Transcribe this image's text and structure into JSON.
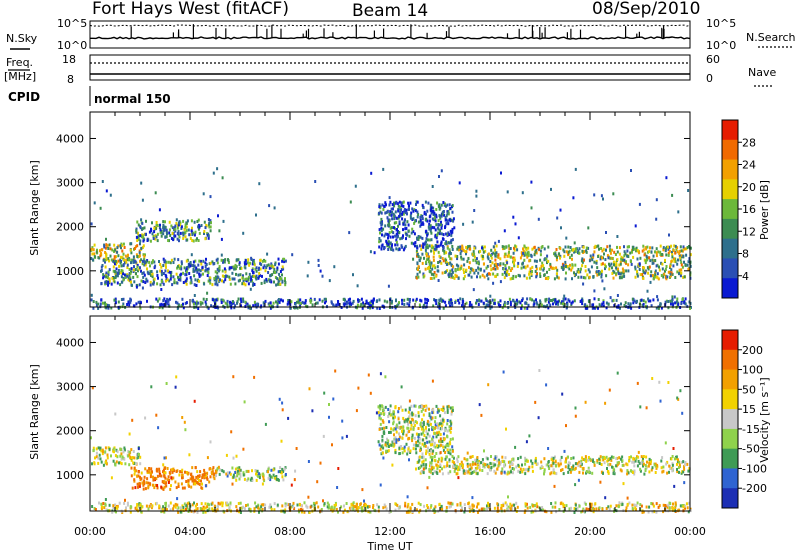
{
  "header": {
    "station": "Fort Hays West (fitACF)",
    "beam": "Beam 14",
    "date": "08/Sep/2010"
  },
  "strip": {
    "nsky_label": "N.Sky",
    "nsky_ticks": [
      "10^5",
      "10^0"
    ],
    "nsearch_label": "N.Search",
    "nsearch_ticks": [
      "10^5",
      "10^0"
    ],
    "freq_label": "Freq.",
    "freq_unit": "[MHz]",
    "freq_ticks": [
      "18",
      "8"
    ],
    "nave_label": "Nave",
    "nave_ticks": [
      "60",
      "0"
    ],
    "cpid_label": "CPID",
    "cpid_value": "normal 150"
  },
  "chart_data": [
    {
      "type": "heatmap",
      "name": "power",
      "xlabel": "Time UT",
      "ylabel": "Slant Range [km]",
      "xlim": [
        0,
        24
      ],
      "ylim": [
        180,
        4600
      ],
      "x_ticks": [
        "00:00",
        "04:00",
        "08:00",
        "12:00",
        "16:00",
        "20:00",
        "00:00"
      ],
      "y_ticks": [
        1000,
        2000,
        3000,
        4000
      ],
      "colorbar": {
        "label": "Power [dB]",
        "ticks": [
          4,
          8,
          12,
          16,
          20,
          24,
          28
        ],
        "range": [
          0,
          32
        ],
        "colors": [
          "#0a1ad2",
          "#2a4fb4",
          "#2e6f8c",
          "#3c8c52",
          "#6cb83a",
          "#e6d000",
          "#f2a000",
          "#f06a00",
          "#e61c00"
        ]
      },
      "echo_regions": [
        {
          "t": [
            0.0,
            2.2
          ],
          "range": [
            1250,
            1650
          ],
          "power": 18,
          "note": "low band"
        },
        {
          "t": [
            0.4,
            7.8
          ],
          "range": [
            700,
            1300
          ],
          "power": 10
        },
        {
          "t": [
            1.8,
            4.8
          ],
          "range": [
            1700,
            2200
          ],
          "power": 10
        },
        {
          "t": [
            13.0,
            24.0
          ],
          "range": [
            850,
            1600
          ],
          "power": 16
        },
        {
          "t": [
            11.5,
            14.5
          ],
          "range": [
            1500,
            2600
          ],
          "power": 6
        },
        {
          "t": [
            0.0,
            24.0
          ],
          "range": [
            180,
            400
          ],
          "power": 6
        }
      ]
    },
    {
      "type": "heatmap",
      "name": "velocity",
      "xlabel": "Time UT",
      "ylabel": "Slant Range [km]",
      "xlim": [
        0,
        24
      ],
      "ylim": [
        180,
        4600
      ],
      "x_ticks": [
        "00:00",
        "04:00",
        "08:00",
        "12:00",
        "16:00",
        "20:00",
        "00:00"
      ],
      "y_ticks": [
        1000,
        2000,
        3000,
        4000
      ],
      "colorbar": {
        "label": "Velocity [m s⁻¹]",
        "ticks": [
          200,
          100,
          50,
          15,
          -15,
          -50,
          -100,
          -200
        ],
        "colors": [
          "#1c2fb4",
          "#2f64d2",
          "#3f9b55",
          "#8fd24c",
          "#c8c8c8",
          "#f2d200",
          "#f2a000",
          "#f07000",
          "#e61c00"
        ]
      },
      "echo_regions": [
        {
          "t": [
            0.0,
            2.0
          ],
          "range": [
            1250,
            1650
          ],
          "velocity": 0
        },
        {
          "t": [
            1.6,
            5.0
          ],
          "range": [
            700,
            1200
          ],
          "velocity": -120
        },
        {
          "t": [
            5.0,
            7.8
          ],
          "range": [
            900,
            1200
          ],
          "velocity": 30
        },
        {
          "t": [
            13.0,
            24.0
          ],
          "range": [
            1050,
            1450
          ],
          "velocity": 0
        },
        {
          "t": [
            11.5,
            14.5
          ],
          "range": [
            1500,
            2600
          ],
          "velocity": 20
        },
        {
          "t": [
            0.0,
            24.0
          ],
          "range": [
            180,
            400
          ],
          "velocity": -20
        }
      ]
    }
  ]
}
